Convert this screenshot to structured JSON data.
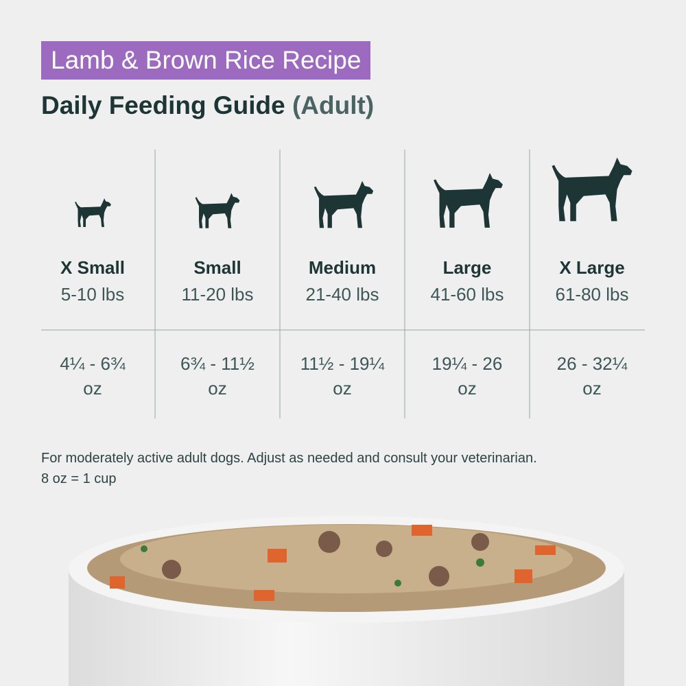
{
  "header": {
    "badge": "Lamb & Brown Rice Recipe",
    "title": "Daily Feeding Guide",
    "title_note": "(Adult)"
  },
  "columns": [
    {
      "size": "X Small",
      "weight": "5-10 lbs",
      "amount": "4¼ - 6¾",
      "unit": "oz"
    },
    {
      "size": "Small",
      "weight": "11-20 lbs",
      "amount": "6¾ - 11½",
      "unit": "oz"
    },
    {
      "size": "Medium",
      "weight": "21-40 lbs",
      "amount": "11½ - 19¼",
      "unit": "oz"
    },
    {
      "size": "Large",
      "weight": "41-60 lbs",
      "amount": "19¼ - 26",
      "unit": "oz"
    },
    {
      "size": "X Large",
      "weight": "61-80 lbs",
      "amount": "26 - 32¼",
      "unit": "oz"
    }
  ],
  "footnote": [
    "For moderately active adult dogs. Adjust as needed and consult your veterinarian.",
    "8 oz = 1 cup"
  ]
}
